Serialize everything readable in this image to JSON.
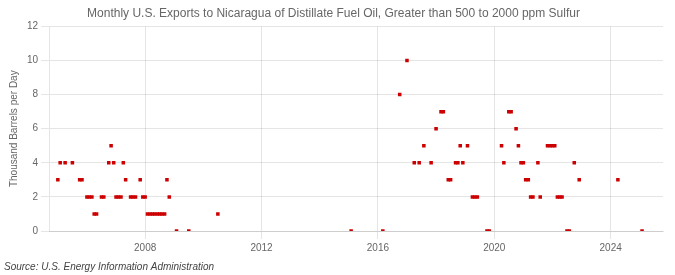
{
  "chart_data": {
    "type": "scatter",
    "title": "Monthly U.S. Exports to Nicaragua of Distillate Fuel Oil, Greater than 500 to 2000 ppm Sulfur",
    "ylabel": "Thousand Barrels per Day",
    "annotations": [
      "Source: U.S. Energy Information Administration"
    ],
    "color": "#cc0000",
    "marker": "square",
    "grid": true,
    "xlim": [
      2004.7,
      2025.8
    ],
    "xticks": [
      2008,
      2012,
      2016,
      2020,
      2024
    ],
    "ylim": [
      0,
      12
    ],
    "yticks": [
      0,
      2,
      4,
      6,
      8,
      10,
      12
    ],
    "x": [
      2005.0,
      2005.08,
      2005.25,
      2005.5,
      2005.75,
      2005.83,
      2006.0,
      2006.08,
      2006.17,
      2006.25,
      2006.33,
      2006.5,
      2006.58,
      2006.75,
      2006.83,
      2006.92,
      2007.0,
      2007.08,
      2007.17,
      2007.25,
      2007.33,
      2007.5,
      2007.58,
      2007.67,
      2007.83,
      2007.92,
      2008.0,
      2008.08,
      2008.17,
      2008.25,
      2008.33,
      2008.42,
      2008.5,
      2008.58,
      2008.67,
      2008.75,
      2008.83,
      2009.08,
      2009.5,
      2010.5,
      2015.08,
      2016.17,
      2016.75,
      2017.0,
      2017.25,
      2017.42,
      2017.58,
      2017.83,
      2018.0,
      2018.17,
      2018.25,
      2018.42,
      2018.5,
      2018.67,
      2018.75,
      2018.83,
      2018.92,
      2019.08,
      2019.25,
      2019.33,
      2019.42,
      2019.75,
      2019.83,
      2020.25,
      2020.33,
      2020.5,
      2020.58,
      2020.75,
      2020.83,
      2020.92,
      2021.0,
      2021.08,
      2021.17,
      2021.25,
      2021.33,
      2021.5,
      2021.58,
      2021.83,
      2021.92,
      2022.0,
      2022.08,
      2022.17,
      2022.25,
      2022.33,
      2022.5,
      2022.58,
      2022.75,
      2022.92,
      2024.25,
      2025.08
    ],
    "values": [
      3,
      4,
      4,
      4,
      3,
      3,
      2,
      2,
      2,
      1,
      1,
      2,
      2,
      4,
      5,
      4,
      2,
      2,
      2,
      4,
      3,
      2,
      2,
      2,
      3,
      2,
      2,
      1,
      1,
      1,
      1,
      1,
      1,
      1,
      1,
      3,
      2,
      0,
      0,
      1,
      0,
      0,
      8,
      10,
      4,
      4,
      5,
      4,
      6,
      7,
      7,
      3,
      3,
      4,
      4,
      5,
      4,
      5,
      2,
      2,
      2,
      0,
      0,
      5,
      4,
      7,
      7,
      6,
      5,
      4,
      4,
      3,
      3,
      2,
      2,
      4,
      2,
      5,
      5,
      5,
      5,
      2,
      2,
      2,
      0,
      0,
      4,
      3,
      3,
      0
    ]
  }
}
